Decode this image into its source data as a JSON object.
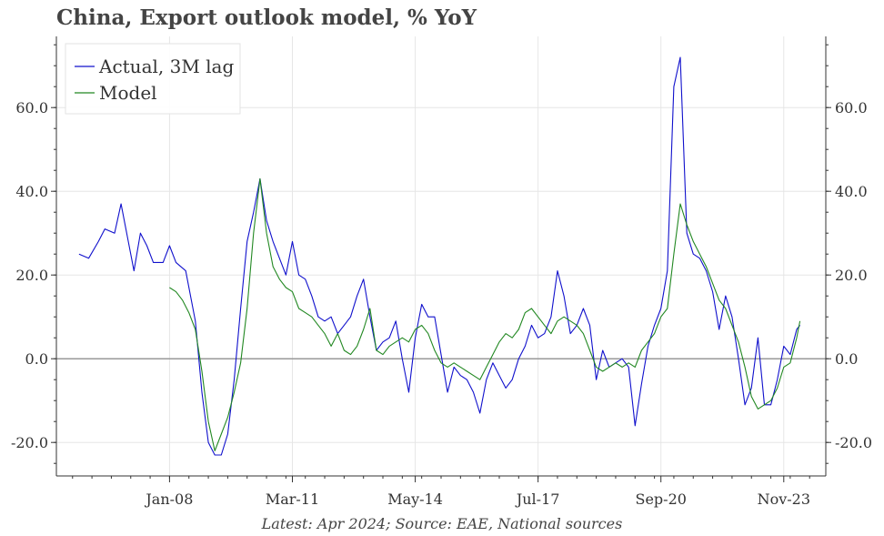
{
  "chart_data": {
    "type": "line",
    "title": "China, Export outlook model, % YoY",
    "source_note": "Latest: Apr 2024; Source: EAE, National sources",
    "xlabel": "",
    "ylabel": "",
    "x_ticks": [
      "Jan-08",
      "Mar-11",
      "May-14",
      "Jul-17",
      "Sep-20",
      "Nov-23"
    ],
    "y_ticks": [
      "60.0",
      "40.0",
      "20.0",
      "0.0",
      "-20.0"
    ],
    "ylim": [
      -28,
      77
    ],
    "xlim": [
      "2005-02",
      "2024-12"
    ],
    "grid": true,
    "legend_position": "top-left",
    "zero_line": true,
    "series": [
      {
        "name": "Actual, 3M lag",
        "color": "#1010cc",
        "points": [
          [
            "2005-09",
            25
          ],
          [
            "2005-12",
            24
          ],
          [
            "2006-03",
            28
          ],
          [
            "2006-05",
            31
          ],
          [
            "2006-08",
            30
          ],
          [
            "2006-10",
            37
          ],
          [
            "2006-12",
            29
          ],
          [
            "2007-02",
            21
          ],
          [
            "2007-04",
            30
          ],
          [
            "2007-06",
            27
          ],
          [
            "2007-08",
            23
          ],
          [
            "2007-11",
            23
          ],
          [
            "2008-01",
            27
          ],
          [
            "2008-03",
            23
          ],
          [
            "2008-06",
            21
          ],
          [
            "2008-09",
            9
          ],
          [
            "2008-11",
            -8
          ],
          [
            "2009-01",
            -20
          ],
          [
            "2009-03",
            -23
          ],
          [
            "2009-05",
            -23
          ],
          [
            "2009-07",
            -18
          ],
          [
            "2009-09",
            -5
          ],
          [
            "2009-11",
            12
          ],
          [
            "2010-01",
            28
          ],
          [
            "2010-03",
            35
          ],
          [
            "2010-05",
            43
          ],
          [
            "2010-07",
            33
          ],
          [
            "2010-09",
            28
          ],
          [
            "2010-11",
            24
          ],
          [
            "2011-01",
            20
          ],
          [
            "2011-03",
            28
          ],
          [
            "2011-05",
            20
          ],
          [
            "2011-07",
            19
          ],
          [
            "2011-09",
            15
          ],
          [
            "2011-11",
            10
          ],
          [
            "2012-01",
            9
          ],
          [
            "2012-03",
            10
          ],
          [
            "2012-05",
            6
          ],
          [
            "2012-07",
            8
          ],
          [
            "2012-09",
            10
          ],
          [
            "2012-11",
            15
          ],
          [
            "2013-01",
            19
          ],
          [
            "2013-03",
            10
          ],
          [
            "2013-05",
            2
          ],
          [
            "2013-07",
            4
          ],
          [
            "2013-09",
            5
          ],
          [
            "2013-11",
            9
          ],
          [
            "2014-01",
            0
          ],
          [
            "2014-03",
            -8
          ],
          [
            "2014-05",
            5
          ],
          [
            "2014-07",
            13
          ],
          [
            "2014-09",
            10
          ],
          [
            "2014-11",
            10
          ],
          [
            "2015-01",
            1
          ],
          [
            "2015-03",
            -8
          ],
          [
            "2015-05",
            -2
          ],
          [
            "2015-07",
            -4
          ],
          [
            "2015-09",
            -5
          ],
          [
            "2015-11",
            -8
          ],
          [
            "2016-01",
            -13
          ],
          [
            "2016-03",
            -5
          ],
          [
            "2016-05",
            -1
          ],
          [
            "2016-07",
            -4
          ],
          [
            "2016-09",
            -7
          ],
          [
            "2016-11",
            -5
          ],
          [
            "2017-01",
            0
          ],
          [
            "2017-03",
            3
          ],
          [
            "2017-05",
            8
          ],
          [
            "2017-07",
            5
          ],
          [
            "2017-09",
            6
          ],
          [
            "2017-11",
            10
          ],
          [
            "2018-01",
            21
          ],
          [
            "2018-03",
            15
          ],
          [
            "2018-05",
            6
          ],
          [
            "2018-07",
            8
          ],
          [
            "2018-09",
            12
          ],
          [
            "2018-11",
            8
          ],
          [
            "2019-01",
            -5
          ],
          [
            "2019-03",
            2
          ],
          [
            "2019-05",
            -2
          ],
          [
            "2019-07",
            -1
          ],
          [
            "2019-09",
            0
          ],
          [
            "2019-11",
            -2
          ],
          [
            "2020-01",
            -16
          ],
          [
            "2020-03",
            -6
          ],
          [
            "2020-05",
            3
          ],
          [
            "2020-07",
            8
          ],
          [
            "2020-09",
            12
          ],
          [
            "2020-11",
            21
          ],
          [
            "2021-01",
            65
          ],
          [
            "2021-03",
            72
          ],
          [
            "2021-05",
            30
          ],
          [
            "2021-07",
            25
          ],
          [
            "2021-09",
            24
          ],
          [
            "2021-11",
            21
          ],
          [
            "2022-01",
            16
          ],
          [
            "2022-03",
            7
          ],
          [
            "2022-05",
            15
          ],
          [
            "2022-07",
            10
          ],
          [
            "2022-09",
            0
          ],
          [
            "2022-11",
            -11
          ],
          [
            "2023-01",
            -7
          ],
          [
            "2023-03",
            5
          ],
          [
            "2023-05",
            -11
          ],
          [
            "2023-07",
            -11
          ],
          [
            "2023-09",
            -5
          ],
          [
            "2023-11",
            3
          ],
          [
            "2024-01",
            1
          ],
          [
            "2024-03",
            7
          ],
          [
            "2024-04",
            8
          ]
        ]
      },
      {
        "name": "Model",
        "color": "#228822",
        "points": [
          [
            "2008-01",
            17
          ],
          [
            "2008-03",
            16
          ],
          [
            "2008-05",
            14
          ],
          [
            "2008-07",
            11
          ],
          [
            "2008-09",
            7
          ],
          [
            "2008-11",
            -3
          ],
          [
            "2009-01",
            -15
          ],
          [
            "2009-03",
            -22
          ],
          [
            "2009-05",
            -18
          ],
          [
            "2009-07",
            -14
          ],
          [
            "2009-09",
            -8
          ],
          [
            "2009-11",
            -1
          ],
          [
            "2010-01",
            12
          ],
          [
            "2010-03",
            30
          ],
          [
            "2010-05",
            43
          ],
          [
            "2010-07",
            30
          ],
          [
            "2010-09",
            22
          ],
          [
            "2010-11",
            19
          ],
          [
            "2011-01",
            17
          ],
          [
            "2011-03",
            16
          ],
          [
            "2011-05",
            12
          ],
          [
            "2011-07",
            11
          ],
          [
            "2011-09",
            10
          ],
          [
            "2011-11",
            8
          ],
          [
            "2012-01",
            6
          ],
          [
            "2012-03",
            3
          ],
          [
            "2012-05",
            6
          ],
          [
            "2012-07",
            2
          ],
          [
            "2012-09",
            1
          ],
          [
            "2012-11",
            3
          ],
          [
            "2013-01",
            7
          ],
          [
            "2013-03",
            12
          ],
          [
            "2013-05",
            2
          ],
          [
            "2013-07",
            1
          ],
          [
            "2013-09",
            3
          ],
          [
            "2013-11",
            4
          ],
          [
            "2014-01",
            5
          ],
          [
            "2014-03",
            4
          ],
          [
            "2014-05",
            7
          ],
          [
            "2014-07",
            8
          ],
          [
            "2014-09",
            6
          ],
          [
            "2014-11",
            2
          ],
          [
            "2015-01",
            -1
          ],
          [
            "2015-03",
            -2
          ],
          [
            "2015-05",
            -1
          ],
          [
            "2015-07",
            -2
          ],
          [
            "2015-09",
            -3
          ],
          [
            "2015-11",
            -4
          ],
          [
            "2016-01",
            -5
          ],
          [
            "2016-03",
            -2
          ],
          [
            "2016-05",
            1
          ],
          [
            "2016-07",
            4
          ],
          [
            "2016-09",
            6
          ],
          [
            "2016-11",
            5
          ],
          [
            "2017-01",
            7
          ],
          [
            "2017-03",
            11
          ],
          [
            "2017-05",
            12
          ],
          [
            "2017-07",
            10
          ],
          [
            "2017-09",
            8
          ],
          [
            "2017-11",
            6
          ],
          [
            "2018-01",
            9
          ],
          [
            "2018-03",
            10
          ],
          [
            "2018-05",
            9
          ],
          [
            "2018-07",
            8
          ],
          [
            "2018-09",
            6
          ],
          [
            "2018-11",
            2
          ],
          [
            "2019-01",
            -2
          ],
          [
            "2019-03",
            -3
          ],
          [
            "2019-05",
            -2
          ],
          [
            "2019-07",
            -1
          ],
          [
            "2019-09",
            -2
          ],
          [
            "2019-11",
            -1
          ],
          [
            "2020-01",
            -2
          ],
          [
            "2020-03",
            2
          ],
          [
            "2020-05",
            4
          ],
          [
            "2020-07",
            6
          ],
          [
            "2020-09",
            10
          ],
          [
            "2020-11",
            12
          ],
          [
            "2021-01",
            25
          ],
          [
            "2021-03",
            37
          ],
          [
            "2021-05",
            32
          ],
          [
            "2021-07",
            28
          ],
          [
            "2021-09",
            25
          ],
          [
            "2021-11",
            22
          ],
          [
            "2022-01",
            18
          ],
          [
            "2022-03",
            14
          ],
          [
            "2022-05",
            12
          ],
          [
            "2022-07",
            8
          ],
          [
            "2022-09",
            4
          ],
          [
            "2022-11",
            -2
          ],
          [
            "2023-01",
            -9
          ],
          [
            "2023-03",
            -12
          ],
          [
            "2023-05",
            -11
          ],
          [
            "2023-07",
            -10
          ],
          [
            "2023-09",
            -7
          ],
          [
            "2023-11",
            -2
          ],
          [
            "2024-01",
            -1
          ],
          [
            "2024-03",
            5
          ],
          [
            "2024-04",
            9
          ]
        ]
      }
    ]
  }
}
